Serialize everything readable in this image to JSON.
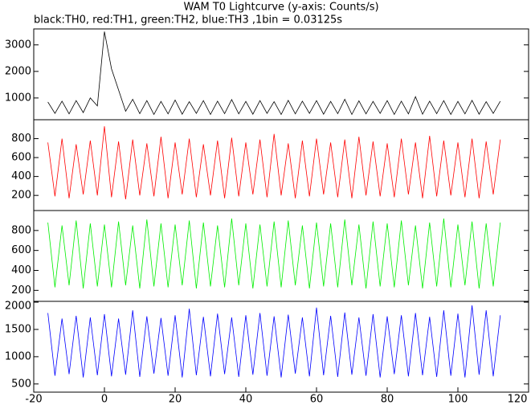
{
  "chart_data": [
    {
      "type": "line",
      "title": "WAM T0 Lightcurve (y-axis: Counts/s)",
      "subtitle": "black:TH0, red:TH1, green:TH2, blue:TH3 ,1bin = 0.03125s",
      "x": [
        -16,
        -14,
        -12,
        -10,
        -8,
        -6,
        -4,
        -2,
        0,
        2,
        4,
        6,
        8,
        10,
        12,
        14,
        16,
        18,
        20,
        22,
        24,
        26,
        28,
        30,
        32,
        34,
        36,
        38,
        40,
        42,
        44,
        46,
        48,
        50,
        52,
        54,
        56,
        58,
        60,
        62,
        64,
        66,
        68,
        70,
        72,
        74,
        76,
        78,
        80,
        82,
        84,
        86,
        88,
        90,
        92,
        94,
        96,
        98,
        100,
        102,
        104,
        106,
        108,
        110,
        112
      ],
      "xlim": [
        -20,
        120
      ],
      "ylim": [
        180,
        3600
      ],
      "yticks": [
        1000,
        2000,
        3000
      ],
      "series": [
        {
          "color": "#000000",
          "values": [
            850,
            420,
            880,
            400,
            900,
            450,
            1000,
            700,
            3500,
            2100,
            1300,
            500,
            950,
            410,
            900,
            380,
            870,
            400,
            920,
            390,
            860,
            420,
            900,
            380,
            880,
            410,
            940,
            400,
            870,
            390,
            900,
            420,
            860,
            380,
            910,
            400,
            880,
            420,
            900,
            390,
            870,
            410,
            950,
            380,
            890,
            400,
            870,
            420,
            900,
            380,
            880,
            400,
            1050,
            390,
            880,
            410,
            900,
            380,
            870,
            400,
            910,
            390,
            860,
            420,
            880
          ]
        }
      ]
    },
    {
      "type": "line",
      "x": [
        -16,
        -14,
        -12,
        -10,
        -8,
        -6,
        -4,
        -2,
        0,
        2,
        4,
        6,
        8,
        10,
        12,
        14,
        16,
        18,
        20,
        22,
        24,
        26,
        28,
        30,
        32,
        34,
        36,
        38,
        40,
        42,
        44,
        46,
        48,
        50,
        52,
        54,
        56,
        58,
        60,
        62,
        64,
        66,
        68,
        70,
        72,
        74,
        76,
        78,
        80,
        82,
        84,
        86,
        88,
        90,
        92,
        94,
        96,
        98,
        100,
        102,
        104,
        106,
        108,
        110,
        112
      ],
      "xlim": [
        -20,
        120
      ],
      "ylim": [
        40,
        1000
      ],
      "yticks": [
        200,
        400,
        600,
        800
      ],
      "series": [
        {
          "color": "#ff0000",
          "values": [
            760,
            190,
            800,
            170,
            740,
            210,
            780,
            200,
            930,
            180,
            770,
            160,
            790,
            200,
            750,
            190,
            820,
            170,
            760,
            210,
            800,
            180,
            740,
            200,
            780,
            170,
            810,
            190,
            760,
            210,
            790,
            180,
            850,
            200,
            750,
            170,
            780,
            190,
            800,
            210,
            760,
            180,
            790,
            170,
            820,
            200,
            770,
            190,
            750,
            180,
            800,
            210,
            760,
            170,
            830,
            190,
            780,
            200,
            760,
            180,
            800,
            170,
            770,
            210,
            790
          ]
        }
      ]
    },
    {
      "type": "line",
      "x": [
        -16,
        -14,
        -12,
        -10,
        -8,
        -6,
        -4,
        -2,
        0,
        2,
        4,
        6,
        8,
        10,
        12,
        14,
        16,
        18,
        20,
        22,
        24,
        26,
        28,
        30,
        32,
        34,
        36,
        38,
        40,
        42,
        44,
        46,
        48,
        50,
        52,
        54,
        56,
        58,
        60,
        62,
        64,
        66,
        68,
        70,
        72,
        74,
        76,
        78,
        80,
        82,
        84,
        86,
        88,
        90,
        92,
        94,
        96,
        98,
        100,
        102,
        104,
        106,
        108,
        110,
        112
      ],
      "xlim": [
        -20,
        120
      ],
      "ylim": [
        90,
        1000
      ],
      "yticks": [
        200,
        400,
        600,
        800
      ],
      "series": [
        {
          "color": "#00ee00",
          "values": [
            880,
            230,
            850,
            250,
            900,
            220,
            870,
            240,
            860,
            230,
            890,
            250,
            850,
            220,
            910,
            240,
            870,
            230,
            860,
            250,
            900,
            220,
            880,
            240,
            850,
            230,
            920,
            250,
            870,
            220,
            860,
            240,
            890,
            230,
            900,
            250,
            850,
            220,
            880,
            240,
            870,
            230,
            910,
            250,
            860,
            220,
            890,
            240,
            870,
            230,
            900,
            250,
            850,
            220,
            880,
            240,
            920,
            230,
            860,
            250,
            890,
            220,
            870,
            240,
            880
          ]
        }
      ]
    },
    {
      "type": "line",
      "x": [
        -16,
        -14,
        -12,
        -10,
        -8,
        -6,
        -4,
        -2,
        0,
        2,
        4,
        6,
        8,
        10,
        12,
        14,
        16,
        18,
        20,
        22,
        24,
        26,
        28,
        30,
        32,
        34,
        36,
        38,
        40,
        42,
        44,
        46,
        48,
        50,
        52,
        54,
        56,
        58,
        60,
        62,
        64,
        66,
        68,
        70,
        72,
        74,
        76,
        78,
        80,
        82,
        84,
        86,
        88,
        90,
        92,
        94,
        96,
        98,
        100,
        102,
        104,
        106,
        108,
        110,
        112
      ],
      "xlim": [
        -20,
        120
      ],
      "xticks": [
        -20,
        0,
        20,
        40,
        60,
        80,
        100,
        120
      ],
      "ylim": [
        350,
        2015
      ],
      "yticks": [
        500,
        1000,
        1500,
        2000
      ],
      "series": [
        {
          "color": "#0000ff",
          "values": [
            1800,
            650,
            1700,
            680,
            1750,
            620,
            1720,
            660,
            1780,
            640,
            1700,
            670,
            1850,
            630,
            1740,
            690,
            1710,
            650,
            1760,
            620,
            1880,
            660,
            1730,
            640,
            1790,
            680,
            1720,
            630,
            1760,
            670,
            1800,
            650,
            1740,
            620,
            1770,
            690,
            1720,
            640,
            1900,
            660,
            1750,
            630,
            1810,
            670,
            1720,
            650,
            1780,
            620,
            1740,
            680,
            1760,
            640,
            1800,
            660,
            1730,
            630,
            1850,
            650,
            1790,
            620,
            1940,
            670,
            1850,
            640,
            1760
          ]
        }
      ]
    }
  ]
}
